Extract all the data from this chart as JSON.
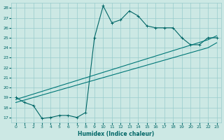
{
  "xlabel": "Humidex (Indice chaleur)",
  "bg_color": "#cce8e4",
  "grid_color": "#99cccc",
  "line_color1": "#006666",
  "line_color2": "#007777",
  "xlim": [
    -0.5,
    23.5
  ],
  "ylim": [
    16.5,
    28.5
  ],
  "xticks": [
    0,
    1,
    2,
    3,
    4,
    5,
    6,
    7,
    8,
    9,
    10,
    11,
    12,
    13,
    14,
    15,
    16,
    17,
    18,
    19,
    20,
    21,
    22,
    23
  ],
  "yticks": [
    17,
    18,
    19,
    20,
    21,
    22,
    23,
    24,
    25,
    26,
    27,
    28
  ],
  "line1_x": [
    0,
    1,
    2,
    3,
    4,
    5,
    6,
    7,
    8,
    9,
    10,
    11,
    12,
    13,
    14,
    15,
    16,
    17,
    18,
    19,
    20,
    21,
    22,
    23
  ],
  "line1_y": [
    19.0,
    18.5,
    18.2,
    16.9,
    17.0,
    17.2,
    17.2,
    17.0,
    17.5,
    25.0,
    28.2,
    26.5,
    26.8,
    27.7,
    27.2,
    26.2,
    26.0,
    26.0,
    26.0,
    25.0,
    24.3,
    24.3,
    25.0,
    25.0
  ],
  "line2_x": [
    0,
    22,
    23
  ],
  "line2_y": [
    18.8,
    24.8,
    25.2
  ],
  "line3_x": [
    0,
    22,
    23
  ],
  "line3_y": [
    18.5,
    24.0,
    24.5
  ]
}
